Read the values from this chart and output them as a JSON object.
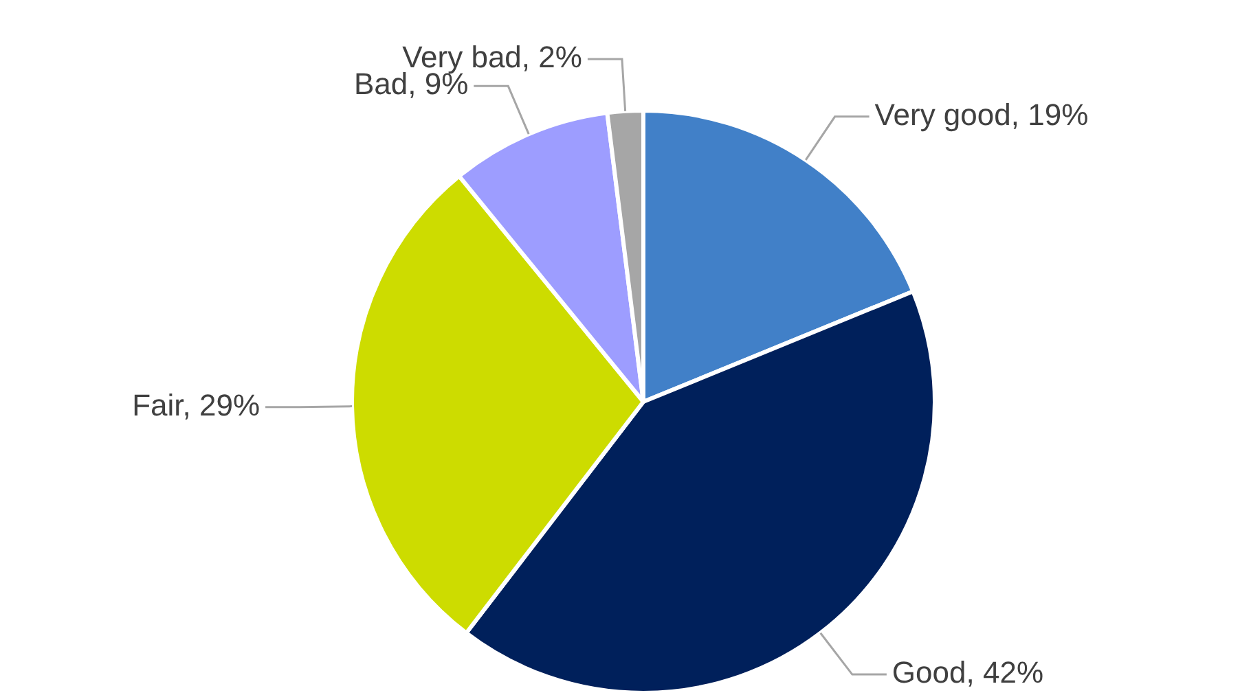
{
  "chart_data": {
    "type": "pie",
    "categories": [
      "Very good",
      "Good",
      "Fair",
      "Bad",
      "Very bad"
    ],
    "values": [
      19,
      42,
      29,
      9,
      2
    ],
    "value_labels": [
      "19%",
      "42%",
      "29%",
      "9%",
      "2%"
    ],
    "colors": [
      "#4180c8",
      "#00205b",
      "#cddc00",
      "#9d9dff",
      "#a6a6a6"
    ],
    "legend": false
  }
}
